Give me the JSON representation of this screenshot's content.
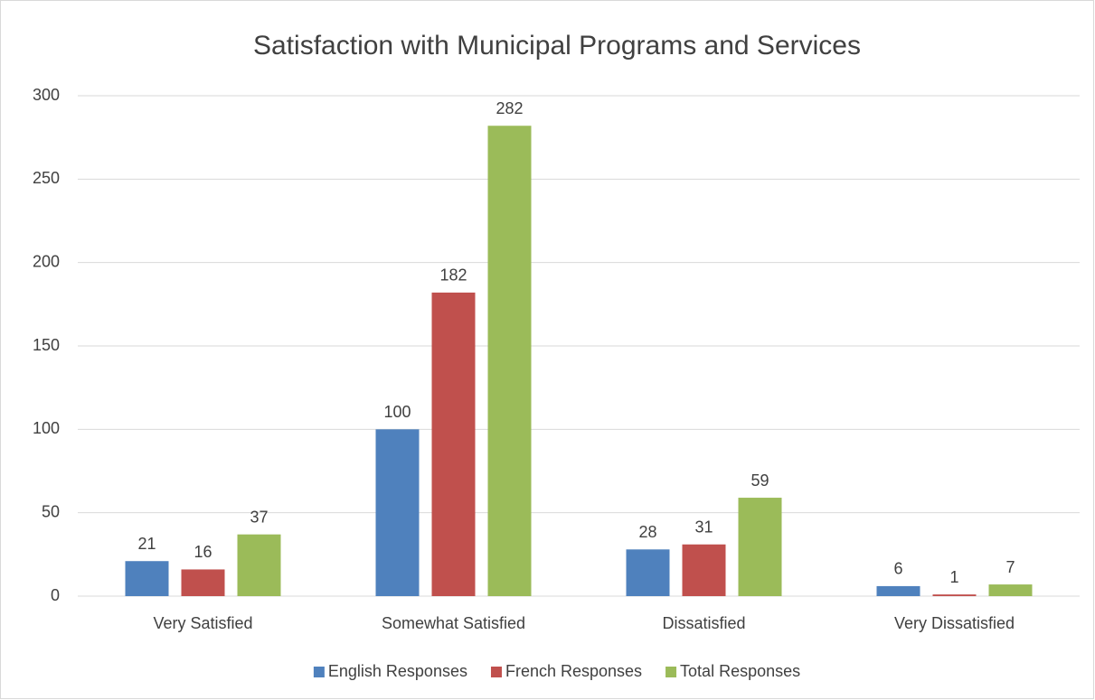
{
  "chart_data": {
    "type": "bar",
    "title": "Satisfaction with Municipal Programs and Services",
    "categories": [
      "Very Satisfied",
      "Somewhat Satisfied",
      "Dissatisfied",
      "Very Dissatisfied"
    ],
    "series": [
      {
        "name": "English Responses",
        "color": "#4f81bd",
        "values": [
          21,
          100,
          28,
          6
        ]
      },
      {
        "name": "French Responses",
        "color": "#c0504d",
        "values": [
          16,
          182,
          31,
          1
        ]
      },
      {
        "name": "Total Responses",
        "color": "#9bbb59",
        "values": [
          37,
          282,
          59,
          7
        ]
      }
    ],
    "ylim": [
      0,
      300
    ],
    "yticks": [
      0,
      50,
      100,
      150,
      200,
      250,
      300
    ],
    "grid": true,
    "legend": "bottom"
  }
}
